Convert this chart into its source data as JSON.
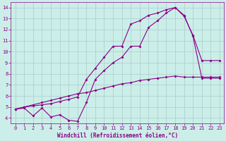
{
  "xlabel": "Windchill (Refroidissement éolien,°C)",
  "xlim": [
    -0.5,
    23.5
  ],
  "ylim": [
    3.5,
    14.5
  ],
  "xticks": [
    0,
    1,
    2,
    3,
    4,
    5,
    6,
    7,
    8,
    9,
    10,
    11,
    12,
    13,
    14,
    15,
    16,
    17,
    18,
    19,
    20,
    21,
    22,
    23
  ],
  "yticks": [
    4,
    5,
    6,
    7,
    8,
    9,
    10,
    11,
    12,
    13,
    14
  ],
  "bg_color": "#cceee8",
  "line_color": "#880088",
  "grid_color": "#aacccc",
  "line1_x": [
    0,
    1,
    2,
    3,
    4,
    5,
    6,
    7,
    8,
    9,
    10,
    11,
    12,
    13,
    14,
    15,
    16,
    17,
    18,
    19,
    20,
    21,
    22,
    23
  ],
  "line1_y": [
    4.8,
    4.9,
    4.2,
    4.9,
    4.1,
    4.3,
    3.8,
    3.7,
    5.4,
    7.5,
    8.3,
    9.0,
    9.5,
    10.5,
    10.5,
    12.2,
    12.8,
    13.5,
    14.0,
    13.2,
    11.5,
    9.2,
    9.2,
    9.2
  ],
  "line2_x": [
    0,
    1,
    2,
    3,
    4,
    5,
    6,
    7,
    8,
    9,
    10,
    11,
    12,
    13,
    14,
    15,
    16,
    17,
    18,
    19,
    20,
    21,
    22,
    23
  ],
  "line2_y": [
    4.8,
    5.0,
    5.1,
    5.2,
    5.3,
    5.5,
    5.7,
    5.9,
    7.5,
    8.5,
    9.5,
    10.5,
    10.5,
    12.5,
    12.8,
    13.3,
    13.5,
    13.8,
    14.0,
    13.3,
    11.4,
    7.6,
    7.6,
    7.6
  ],
  "line3_x": [
    0,
    1,
    2,
    3,
    4,
    5,
    6,
    7,
    8,
    9,
    10,
    11,
    12,
    13,
    14,
    15,
    16,
    17,
    18,
    19,
    20,
    21,
    22,
    23
  ],
  "line3_y": [
    4.8,
    5.0,
    5.2,
    5.4,
    5.6,
    5.8,
    6.0,
    6.2,
    6.3,
    6.5,
    6.7,
    6.9,
    7.1,
    7.2,
    7.4,
    7.5,
    7.6,
    7.7,
    7.8,
    7.7,
    7.7,
    7.7,
    7.7,
    7.7
  ]
}
